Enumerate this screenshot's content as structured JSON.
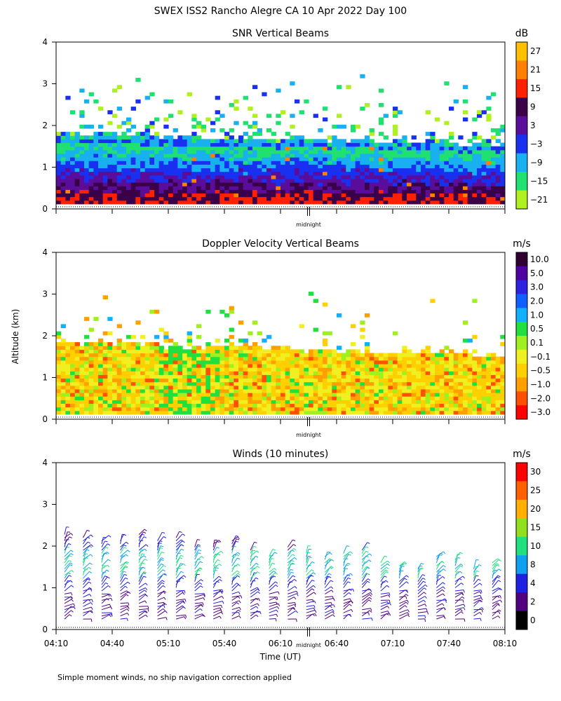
{
  "figure": {
    "title": "SWEX ISS2 Rancho Alegre CA  10 Apr 2022 Day 100",
    "footnote": "Simple moment winds, no ship navigation correction applied"
  },
  "chart_data": [
    {
      "type": "heatmap",
      "title": "SNR Vertical Beams",
      "ylabel": "",
      "ylim": [
        0,
        4
      ],
      "yticks": [
        "0",
        "1",
        "2",
        "3",
        "4"
      ],
      "marker_label": "midnight",
      "colorbar": {
        "unit": "dB",
        "labels": [
          "27",
          "21",
          "15",
          "9",
          "3",
          "−3",
          "−9",
          "−15",
          "−21"
        ],
        "colors": [
          "#ffc000",
          "#ff8000",
          "#ff2000",
          "#3a0048",
          "#5a0c9a",
          "#1a30f0",
          "#18b0f0",
          "#20e070",
          "#b0f020"
        ]
      }
    },
    {
      "type": "heatmap",
      "title": "Doppler Velocity Vertical Beams",
      "ylabel": "Altitude (km)",
      "ylim": [
        0,
        4
      ],
      "yticks": [
        "0",
        "1",
        "2",
        "3",
        "4"
      ],
      "marker_label": "midnight",
      "colorbar": {
        "unit": "m/s",
        "labels": [
          "10.0",
          "5.0",
          "3.0",
          "2.0",
          "1.0",
          "0.5",
          "0.1",
          "−0.1",
          "−0.5",
          "−1.0",
          "−2.0",
          "−3.0"
        ],
        "colors": [
          "#300030",
          "#5000a0",
          "#3020e0",
          "#1060ff",
          "#10b0ff",
          "#20e040",
          "#a0f020",
          "#f0f020",
          "#ffd000",
          "#ffa000",
          "#ff5000",
          "#ff0000"
        ]
      }
    },
    {
      "type": "scatter",
      "title": "Winds (10 minutes)",
      "xlabel": "Time (UT)",
      "ylim": [
        0,
        4
      ],
      "yticks": [
        "0",
        "1",
        "2",
        "3",
        "4"
      ],
      "xticks": [
        "04:10",
        "04:40",
        "05:10",
        "05:40",
        "06:10",
        "06:40",
        "07:10",
        "07:40",
        "08:10"
      ],
      "marker_label": "midnight",
      "colorbar": {
        "unit": "m/s",
        "labels": [
          "30",
          "25",
          "20",
          "15",
          "10",
          "8",
          "4",
          "2",
          "0"
        ],
        "colors": [
          "#ff0000",
          "#ff6000",
          "#ffb000",
          "#90e020",
          "#20e080",
          "#10a0f0",
          "#2020e0",
          "#500080",
          "#000000"
        ]
      }
    }
  ]
}
